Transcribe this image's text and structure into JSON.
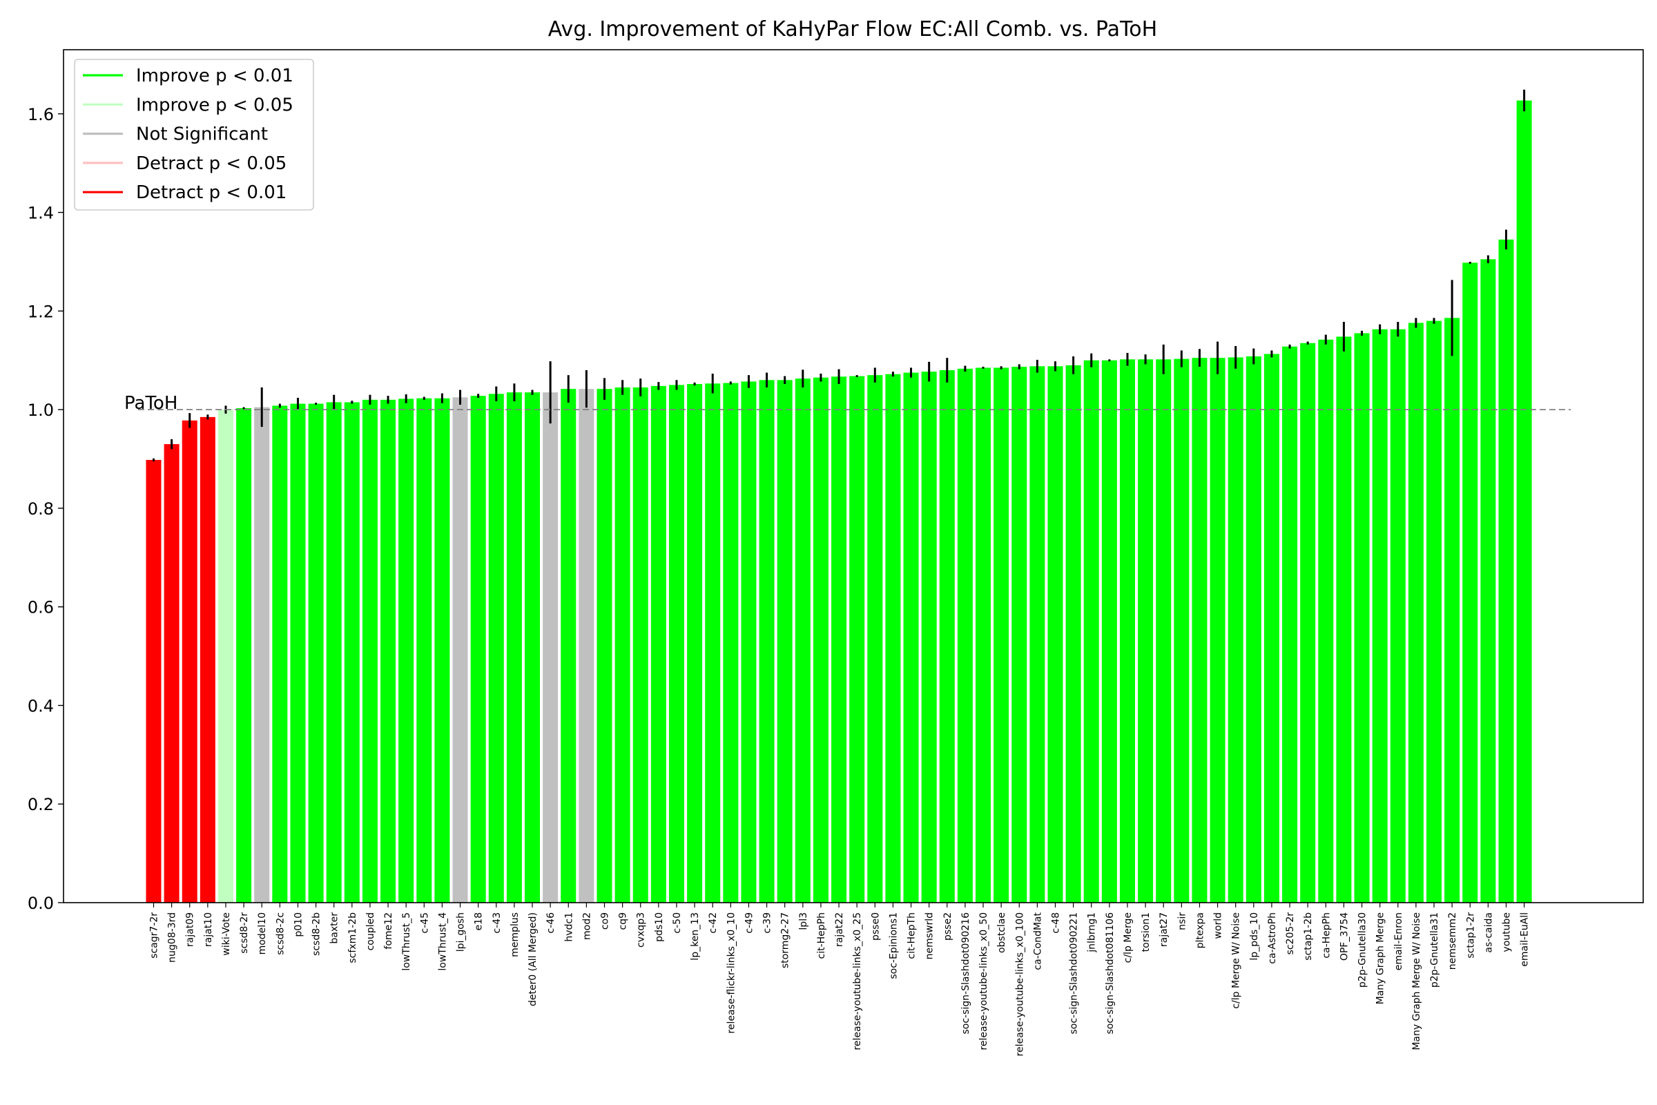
{
  "chart_data": {
    "type": "bar",
    "title": "Avg. Improvement of KaHyPar Flow EC:All Comb. vs. PaToH",
    "xlabel": "",
    "ylabel": "",
    "ylim": [
      0,
      1.73
    ],
    "yticks": [
      0.0,
      0.2,
      0.4,
      0.6,
      0.8,
      1.0,
      1.2,
      1.4,
      1.6
    ],
    "ytick_labels": [
      "0.0",
      "0.2",
      "0.4",
      "0.6",
      "0.8",
      "1.0",
      "1.2",
      "1.4",
      "1.6"
    ],
    "grid": false,
    "legend_position": "top-left",
    "legend": [
      {
        "key": "imp01",
        "label": "Improve p < 0.01",
        "color": "#00ff00"
      },
      {
        "key": "imp05",
        "label": "Improve p < 0.05",
        "color": "#c0ffc0"
      },
      {
        "key": "ns",
        "label": "Not Significant",
        "color": "#c0c0c0"
      },
      {
        "key": "det05",
        "label": "Detract p < 0.05",
        "color": "#ffc0c0"
      },
      {
        "key": "det01",
        "label": "Detract p < 0.01",
        "color": "#ff0000"
      }
    ],
    "reference_line": {
      "y": 1.0,
      "label": "PaToH",
      "color": "#808080"
    },
    "categories": [
      "scagr7-2r",
      "nug08-3rd",
      "rajat09",
      "rajat10",
      "wiki-Vote",
      "scsd8-2r",
      "model10",
      "scsd8-2c",
      "p010",
      "scsd8-2b",
      "baxter",
      "scfxm1-2b",
      "coupled",
      "fome12",
      "lowThrust_5",
      "c-45",
      "lowThrust_4",
      "lpi_gosh",
      "e18",
      "c-43",
      "memplus",
      "deter0 (All Merged)",
      "c-46",
      "hvdc1",
      "mod2",
      "co9",
      "cq9",
      "cvxqp3",
      "pds10",
      "c-50",
      "lp_ken_13",
      "c-42",
      "release-flickr-links_x0_10",
      "c-49",
      "c-39",
      "stormg2-27",
      "lpl3",
      "cit-HepPh",
      "rajat22",
      "release-youtube-links_x0_25",
      "psse0",
      "soc-Epinions1",
      "cit-HepTh",
      "nemswrld",
      "psse2",
      "soc-sign-Slashdot090216",
      "release-youtube-links_x0_50",
      "obstclae",
      "release-youtube-links_x0_100",
      "ca-CondMat",
      "c-48",
      "soc-sign-Slashdot090221",
      "jnlbrng1",
      "soc-sign-Slashdot081106",
      "c/lp Merge",
      "torsion1",
      "rajat27",
      "nsir",
      "pltexpa",
      "world",
      "c/lp Merge W/ Noise",
      "lp_pds_10",
      "ca-AstroPh",
      "sc205-2r",
      "sctap1-2b",
      "ca-HepPh",
      "OPF_3754",
      "p2p-Gnutella30",
      "Many Graph Merge",
      "email-Enron",
      "Many Graph Merge W/ Noise",
      "p2p-Gnutella31",
      "nemsemm2",
      "sctap1-2r",
      "as-caida",
      "youtube",
      "email-EuAll"
    ],
    "values": [
      0.898,
      0.93,
      0.978,
      0.985,
      1.0,
      1.003,
      1.005,
      1.008,
      1.012,
      1.012,
      1.015,
      1.015,
      1.02,
      1.02,
      1.022,
      1.023,
      1.023,
      1.025,
      1.028,
      1.032,
      1.035,
      1.035,
      1.035,
      1.042,
      1.042,
      1.042,
      1.045,
      1.045,
      1.048,
      1.05,
      1.052,
      1.053,
      1.054,
      1.057,
      1.06,
      1.06,
      1.063,
      1.065,
      1.067,
      1.068,
      1.07,
      1.072,
      1.075,
      1.077,
      1.08,
      1.083,
      1.085,
      1.085,
      1.087,
      1.088,
      1.088,
      1.09,
      1.1,
      1.1,
      1.102,
      1.102,
      1.102,
      1.103,
      1.105,
      1.105,
      1.106,
      1.108,
      1.113,
      1.128,
      1.135,
      1.142,
      1.148,
      1.155,
      1.163,
      1.163,
      1.176,
      1.18,
      1.186,
      1.298,
      1.305,
      1.345,
      1.627
    ],
    "errors": [
      0.003,
      0.01,
      0.015,
      0.005,
      0.008,
      0.002,
      0.04,
      0.004,
      0.012,
      0.002,
      0.015,
      0.003,
      0.01,
      0.008,
      0.009,
      0.003,
      0.01,
      0.015,
      0.004,
      0.015,
      0.018,
      0.005,
      0.063,
      0.028,
      0.038,
      0.022,
      0.015,
      0.018,
      0.008,
      0.01,
      0.003,
      0.02,
      0.003,
      0.013,
      0.015,
      0.008,
      0.018,
      0.008,
      0.015,
      0.002,
      0.015,
      0.005,
      0.01,
      0.02,
      0.025,
      0.006,
      0.002,
      0.003,
      0.005,
      0.013,
      0.01,
      0.018,
      0.014,
      0.002,
      0.013,
      0.01,
      0.03,
      0.017,
      0.018,
      0.033,
      0.023,
      0.016,
      0.007,
      0.004,
      0.003,
      0.01,
      0.03,
      0.005,
      0.01,
      0.015,
      0.01,
      0.006,
      0.077,
      0.002,
      0.008,
      0.02,
      0.022
    ],
    "significance": [
      "det01",
      "det01",
      "det01",
      "det01",
      "imp05",
      "imp01",
      "ns",
      "imp01",
      "imp01",
      "imp01",
      "imp01",
      "imp01",
      "imp01",
      "imp01",
      "imp01",
      "imp01",
      "imp01",
      "ns",
      "imp01",
      "imp01",
      "imp01",
      "imp01",
      "ns",
      "imp01",
      "ns",
      "imp01",
      "imp01",
      "imp01",
      "imp01",
      "imp01",
      "imp01",
      "imp01",
      "imp01",
      "imp01",
      "imp01",
      "imp01",
      "imp01",
      "imp01",
      "imp01",
      "imp01",
      "imp01",
      "imp01",
      "imp01",
      "imp01",
      "imp01",
      "imp01",
      "imp01",
      "imp01",
      "imp01",
      "imp01",
      "imp01",
      "imp01",
      "imp01",
      "imp01",
      "imp01",
      "imp01",
      "imp01",
      "imp01",
      "imp01",
      "imp01",
      "imp01",
      "imp01",
      "imp01",
      "imp01",
      "imp01",
      "imp01",
      "imp01",
      "imp01",
      "imp01",
      "imp01",
      "imp01",
      "imp01",
      "imp01",
      "imp01",
      "imp01",
      "imp01",
      "imp01"
    ]
  }
}
